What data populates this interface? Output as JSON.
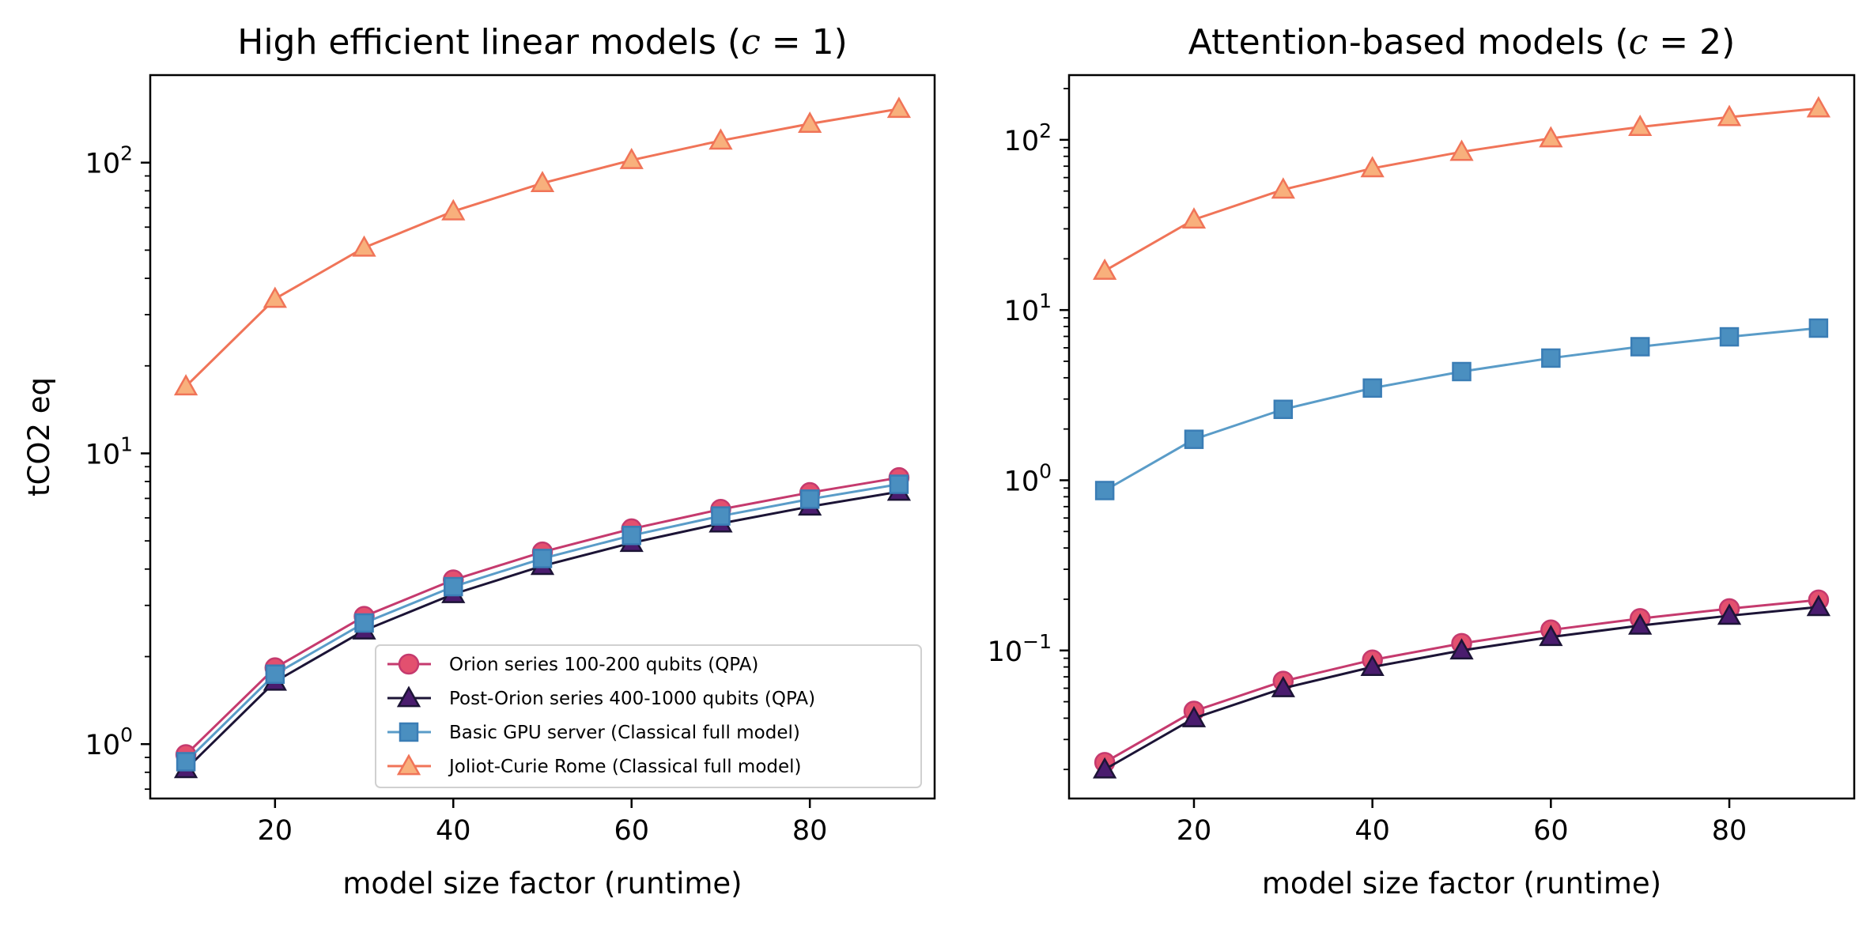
{
  "chart_data": [
    {
      "type": "line",
      "title_pre": "High efficient linear models (",
      "title_var": "c",
      "title_post": " = 1)",
      "xlabel": "model size factor (runtime)",
      "ylabel": "tCO2 eq",
      "yscale": "log",
      "xlim": [
        6,
        94
      ],
      "ylim": [
        0.65,
        200
      ],
      "x_ticks": [
        20,
        40,
        60,
        80
      ],
      "y_ticks": [
        1,
        10,
        100
      ],
      "grid": false,
      "legend": "lower-right",
      "x": [
        10,
        20,
        30,
        40,
        50,
        60,
        70,
        80,
        90
      ],
      "series": [
        {
          "name": "Orion series 100-200 qubits (QPA)",
          "marker": "circle",
          "line_color": "#c53a6e",
          "fill": "#e3506f",
          "edge": "#c53a6e",
          "values": [
            0.92,
            1.83,
            2.75,
            3.67,
            4.58,
            5.5,
            6.42,
            7.33,
            8.25
          ]
        },
        {
          "name": "Post-Orion series 400-1000 qubits (QPA)",
          "marker": "triangle",
          "line_color": "#1c1436",
          "fill": "#4a1c6e",
          "edge": "#1c1436",
          "values": [
            0.82,
            1.64,
            2.46,
            3.28,
            4.1,
            4.92,
            5.74,
            6.56,
            7.38
          ]
        },
        {
          "name": "Basic GPU server (Classical full model)",
          "marker": "square",
          "line_color": "#5a9cc8",
          "fill": "#4a8fc0",
          "edge": "#3a7db5",
          "values": [
            0.87,
            1.74,
            2.61,
            3.48,
            4.35,
            5.22,
            6.09,
            6.96,
            7.83
          ]
        },
        {
          "name": "Joliot-Curie Rome (Classical full model)",
          "marker": "triangle",
          "line_color": "#f07458",
          "fill": "#f8b07c",
          "edge": "#f07458",
          "values": [
            17,
            34,
            51,
            68,
            85,
            102,
            119,
            136,
            153
          ]
        }
      ]
    },
    {
      "type": "line",
      "title_pre": "Attention-based models (",
      "title_var": "c",
      "title_post": " = 2)",
      "xlabel": "model size factor (runtime)",
      "ylabel": "",
      "yscale": "log",
      "xlim": [
        6,
        94
      ],
      "ylim": [
        0.0135,
        240
      ],
      "x_ticks": [
        20,
        40,
        60,
        80
      ],
      "y_ticks": [
        0.1,
        1,
        10,
        100
      ],
      "grid": false,
      "x": [
        10,
        20,
        30,
        40,
        50,
        60,
        70,
        80,
        90
      ],
      "series": [
        {
          "name": "Orion series 100-200 qubits (QPA)",
          "marker": "circle",
          "line_color": "#c53a6e",
          "fill": "#e3506f",
          "edge": "#c53a6e",
          "values": [
            0.022,
            0.044,
            0.066,
            0.088,
            0.11,
            0.132,
            0.154,
            0.176,
            0.198
          ]
        },
        {
          "name": "Post-Orion series 400-1000 qubits (QPA)",
          "marker": "triangle",
          "line_color": "#1c1436",
          "fill": "#4a1c6e",
          "edge": "#1c1436",
          "values": [
            0.02,
            0.04,
            0.06,
            0.08,
            0.1,
            0.12,
            0.14,
            0.16,
            0.18
          ]
        },
        {
          "name": "Basic GPU server (Classical full model)",
          "marker": "square",
          "line_color": "#5a9cc8",
          "fill": "#4a8fc0",
          "edge": "#3a7db5",
          "values": [
            0.87,
            1.74,
            2.61,
            3.48,
            4.35,
            5.22,
            6.09,
            6.96,
            7.83
          ]
        },
        {
          "name": "Joliot-Curie Rome (Classical full model)",
          "marker": "triangle",
          "line_color": "#f07458",
          "fill": "#f8b07c",
          "edge": "#f07458",
          "values": [
            17,
            34,
            51,
            68,
            85,
            102,
            119,
            136,
            153
          ]
        }
      ]
    }
  ]
}
